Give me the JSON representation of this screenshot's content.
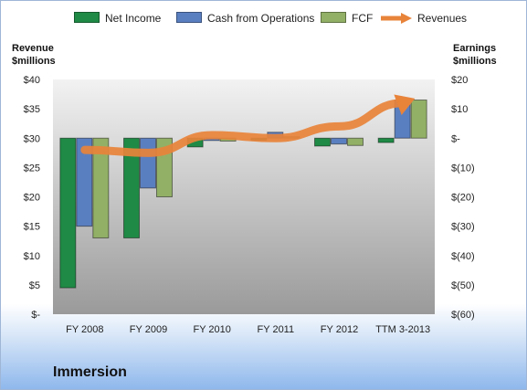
{
  "legend": {
    "net_income": "Net Income",
    "cfo": "Cash from Operations",
    "fcf": "FCF",
    "revenues": "Revenues"
  },
  "left_axis_title": [
    "Revenue",
    "$millions"
  ],
  "right_axis_title": [
    "Earnings",
    "$millions"
  ],
  "company": "Immersion",
  "colors": {
    "net_income": "#1f8a45",
    "cfo": "#5a7fc0",
    "fcf": "#92b066",
    "revenues": "#e8833a",
    "plot_top": "#f0f0f0",
    "plot_bottom": "#9a9a9a"
  },
  "chart_data": {
    "type": "bar",
    "categories": [
      "FY 2008",
      "FY 2009",
      "FY 2010",
      "FY 2011",
      "FY 2012",
      "TTM 3-2013"
    ],
    "series": [
      {
        "name": "Net Income",
        "axis": "right",
        "values": [
          -51.0,
          -34.0,
          -3.0,
          -0.7,
          -2.7,
          -1.5
        ]
      },
      {
        "name": "Cash from Operations",
        "axis": "right",
        "values": [
          -30.0,
          -17.0,
          -0.8,
          2.0,
          -2.0,
          13.0
        ]
      },
      {
        "name": "FCF",
        "axis": "right",
        "values": [
          -34.0,
          -20.0,
          -1.0,
          0.5,
          -2.5,
          13.0
        ]
      },
      {
        "name": "Revenues",
        "axis": "left",
        "type": "line",
        "values": [
          28.0,
          27.5,
          30.5,
          30.0,
          32.0,
          36.0
        ]
      }
    ],
    "left_axis": {
      "title": "Revenue $millions",
      "ylim": [
        0,
        40
      ],
      "ticks": [
        "$-",
        "$5",
        "$10",
        "$15",
        "$20",
        "$25",
        "$30",
        "$35",
        "$40"
      ]
    },
    "right_axis": {
      "title": "Earnings $millions",
      "ylim": [
        -60,
        20
      ],
      "ticks": [
        "$(60)",
        "$(50)",
        "$(40)",
        "$(30)",
        "$(20)",
        "$(10)",
        "$-",
        "$10",
        "$20"
      ]
    },
    "legend_position": "top",
    "grid": false
  }
}
